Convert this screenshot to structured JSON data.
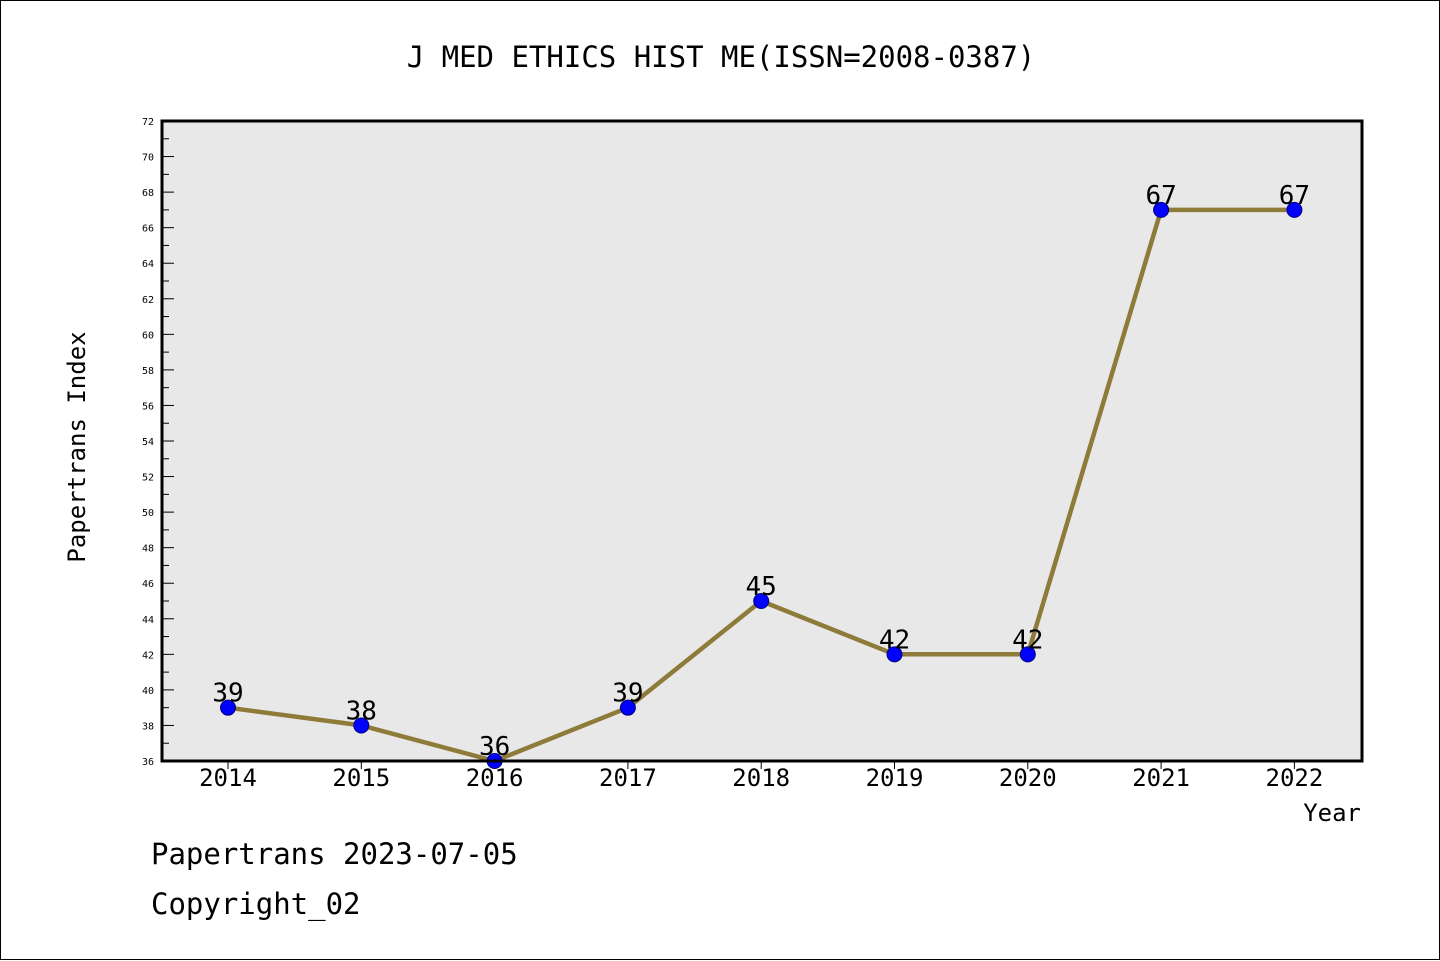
{
  "chart_data": {
    "type": "line",
    "title": "J MED ETHICS HIST ME(ISSN=2008-0387)",
    "xlabel": "Year",
    "ylabel": "Papertrans Index",
    "categories": [
      "2014",
      "2015",
      "2016",
      "2017",
      "2018",
      "2019",
      "2020",
      "2021",
      "2022"
    ],
    "series": [
      {
        "values": [
          39,
          38,
          36,
          39,
          45,
          42,
          42,
          67,
          67
        ]
      }
    ],
    "ylim": [
      36,
      72
    ],
    "y_major_step": 2,
    "y_minor_step": 1,
    "grid": false,
    "legend": "none",
    "colors": {
      "line": "#8e7b3a",
      "marker": "#0000ff",
      "marker_edge": "#000080",
      "plot_background": "#e8e8e8",
      "axes": "#000000"
    }
  },
  "footer": {
    "line1": "Papertrans 2023-07-05",
    "line2": "Copyright_02"
  }
}
